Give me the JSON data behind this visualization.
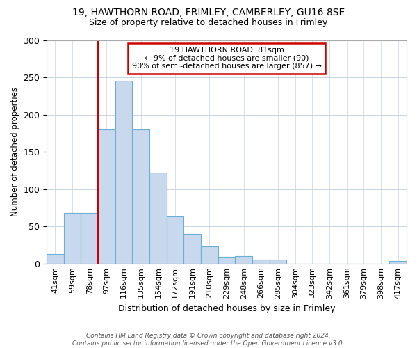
{
  "title1": "19, HAWTHORN ROAD, FRIMLEY, CAMBERLEY, GU16 8SE",
  "title2": "Size of property relative to detached houses in Frimley",
  "xlabel": "Distribution of detached houses by size in Frimley",
  "ylabel": "Number of detached properties",
  "footnote": "Contains HM Land Registry data © Crown copyright and database right 2024.\nContains public sector information licensed under the Open Government Licence v3.0.",
  "categories": [
    "41sqm",
    "59sqm",
    "78sqm",
    "97sqm",
    "116sqm",
    "135sqm",
    "154sqm",
    "172sqm",
    "191sqm",
    "210sqm",
    "229sqm",
    "248sqm",
    "266sqm",
    "285sqm",
    "304sqm",
    "323sqm",
    "342sqm",
    "361sqm",
    "379sqm",
    "398sqm",
    "417sqm"
  ],
  "values": [
    13,
    68,
    68,
    180,
    245,
    180,
    122,
    63,
    40,
    23,
    9,
    10,
    5,
    5,
    0,
    0,
    0,
    0,
    0,
    0,
    3
  ],
  "bar_color": "#c8d9ed",
  "bar_edge_color": "#6baed6",
  "red_line_x": 2.5,
  "annotation_text": "19 HAWTHORN ROAD: 81sqm\n← 9% of detached houses are smaller (90)\n90% of semi-detached houses are larger (857) →",
  "annotation_box_color": "#ffffff",
  "annotation_box_edge_color": "#cc0000",
  "red_line_color": "#cc0000",
  "ylim": [
    0,
    300
  ],
  "yticks": [
    0,
    50,
    100,
    150,
    200,
    250,
    300
  ],
  "background_color": "#ffffff",
  "plot_background_color": "#ffffff",
  "grid_color": "#c8d4e0"
}
